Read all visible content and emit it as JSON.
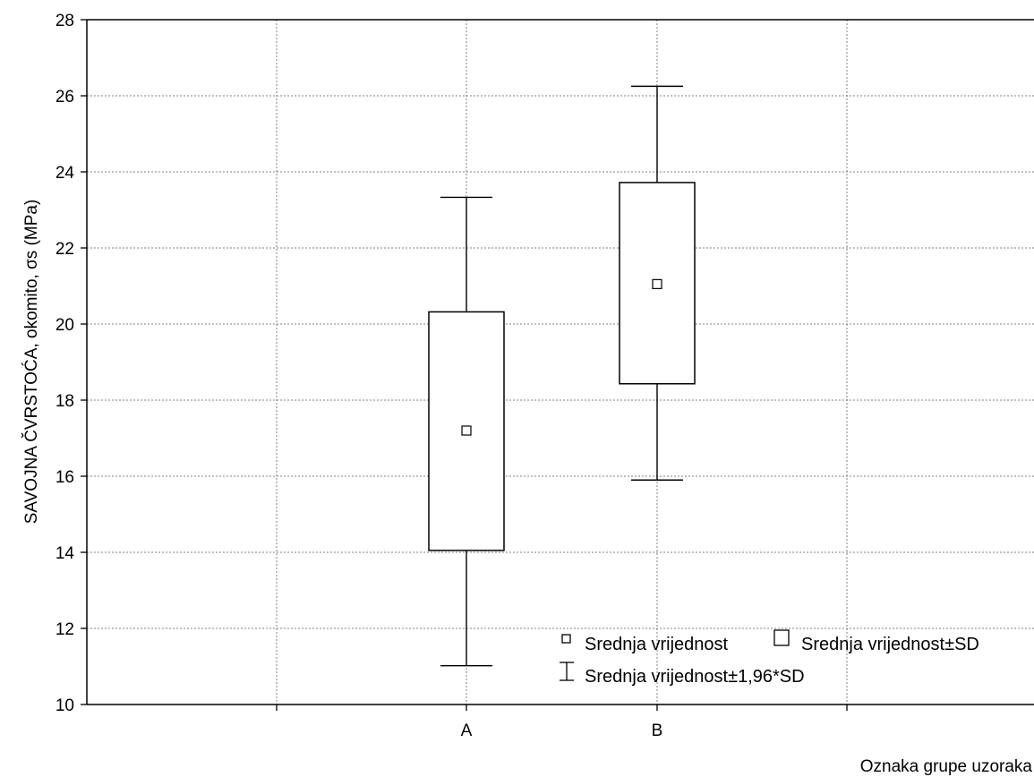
{
  "chart_data": {
    "type": "box",
    "categories": [
      "A",
      "B"
    ],
    "series": [
      {
        "category": "A",
        "mean": 17.2,
        "mean_minus_sd": 14.05,
        "mean_plus_sd": 20.32,
        "lower_1_96sd": 11.02,
        "upper_1_96sd": 23.33
      },
      {
        "category": "B",
        "mean": 21.05,
        "mean_minus_sd": 18.43,
        "mean_plus_sd": 23.72,
        "lower_1_96sd": 15.9,
        "upper_1_96sd": 26.25
      }
    ],
    "xlabel": "Oznaka grupe uzoraka",
    "ylabel": "SAVOJNA ČVRSTOĆA, okomito, σs (MPa)",
    "ylim": [
      10,
      28
    ],
    "yticks": [
      "10",
      "12",
      "14",
      "16",
      "18",
      "20",
      "22",
      "24",
      "26",
      "28"
    ],
    "grid": true,
    "legend": {
      "position": "bottom-right",
      "entries": [
        "Srednja vrijednost",
        "Srednja vrijednost±SD",
        "Srednja vrijednost±1,96*SD"
      ]
    },
    "colors": {
      "stroke": "#000000",
      "grid": "#808080",
      "background": "#ffffff"
    }
  }
}
